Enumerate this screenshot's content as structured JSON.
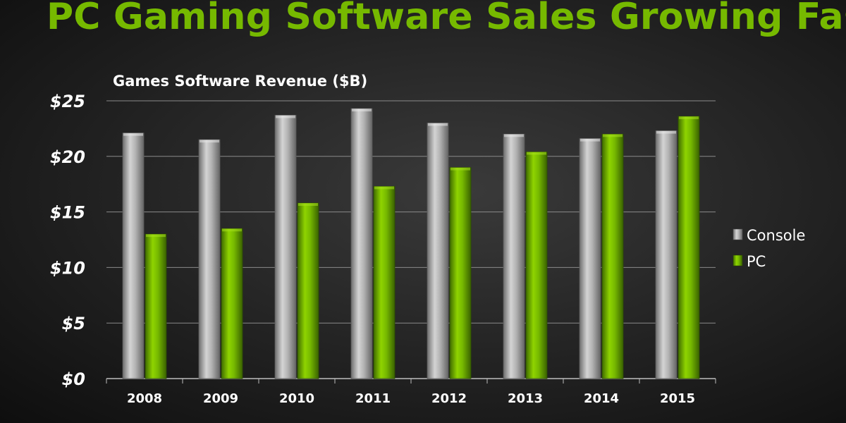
{
  "slide": {
    "title": "PC Gaming Software Sales Growing Fast!"
  },
  "colors": {
    "title": "#76b900",
    "console": "#a6a6a6",
    "pc": "#76b900"
  },
  "chart_data": {
    "type": "bar",
    "title": "Games Software Revenue ($B)",
    "xlabel": "",
    "ylabel": "",
    "categories": [
      "2008",
      "2009",
      "2010",
      "2011",
      "2012",
      "2013",
      "2014",
      "2015"
    ],
    "series": [
      {
        "name": "Console",
        "values": [
          22.1,
          21.5,
          23.7,
          24.3,
          23.0,
          22.0,
          21.6,
          22.3
        ]
      },
      {
        "name": "PC",
        "values": [
          13.0,
          13.5,
          15.8,
          17.3,
          19.0,
          20.4,
          22.0,
          23.6
        ]
      }
    ],
    "ylim": [
      0,
      25
    ],
    "yticks": [
      {
        "value": 0,
        "label": "$0"
      },
      {
        "value": 5,
        "label": "$5"
      },
      {
        "value": 10,
        "label": "$10"
      },
      {
        "value": 15,
        "label": "$15"
      },
      {
        "value": 20,
        "label": "$20"
      },
      {
        "value": 25,
        "label": "$25"
      }
    ],
    "grid": true,
    "legend_position": "right"
  }
}
